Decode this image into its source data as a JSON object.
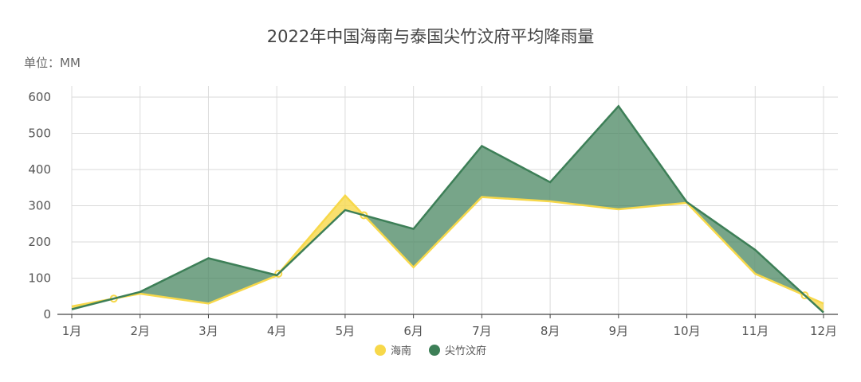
{
  "chart_data": {
    "type": "area",
    "title": "2022年中国海南与泰国尖竹汶府平均降雨量",
    "unit_label": "单位：MM",
    "categories": [
      "1月",
      "2月",
      "3月",
      "4月",
      "5月",
      "6月",
      "7月",
      "8月",
      "9月",
      "10月",
      "11月",
      "12月"
    ],
    "ylim": [
      0,
      600
    ],
    "yticks": [
      0,
      100,
      200,
      300,
      400,
      500,
      600
    ],
    "grid": true,
    "legend_position": "bottom",
    "series": [
      {
        "name": "海南",
        "color": "#f7d84a",
        "values": [
          22,
          57,
          30,
          107,
          328,
          130,
          324,
          312,
          290,
          308,
          112,
          30
        ]
      },
      {
        "name": "尖竹汶府",
        "color": "#3d7f57",
        "values": [
          14,
          62,
          155,
          108,
          288,
          236,
          465,
          365,
          575,
          310,
          178,
          5
        ]
      }
    ]
  }
}
